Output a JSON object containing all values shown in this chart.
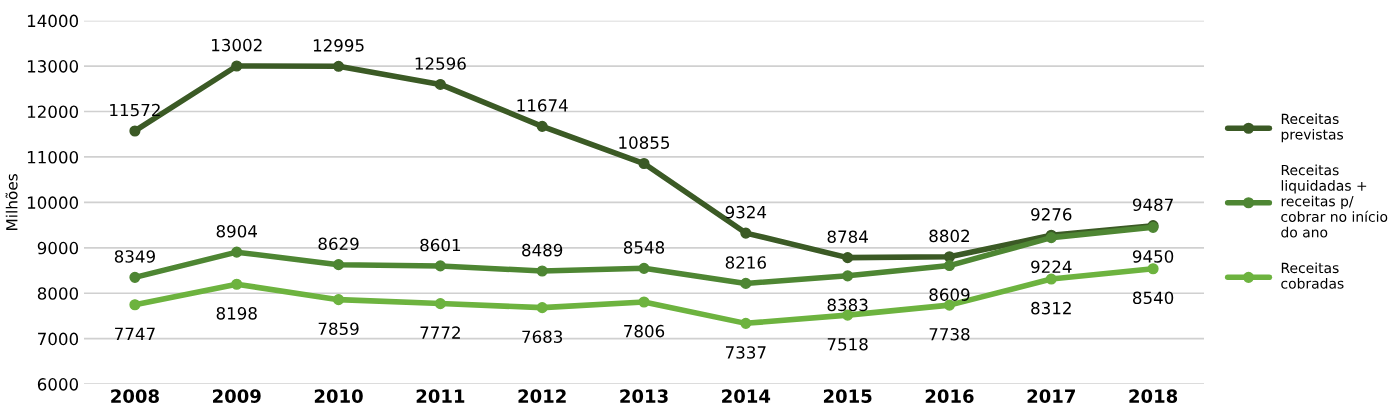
{
  "chart_data": {
    "type": "line",
    "ylabel": "Milhões",
    "categories": [
      "2008",
      "2009",
      "2010",
      "2011",
      "2012",
      "2013",
      "2014",
      "2015",
      "2016",
      "2017",
      "2018"
    ],
    "series": [
      {
        "name": "Receitas previstas",
        "color": "#3b5a25",
        "values": [
          11572,
          13002,
          12995,
          12596,
          11674,
          10855,
          9324,
          8784,
          8802,
          9276,
          9487
        ]
      },
      {
        "name": "Receitas liquidadas + receitas p/ cobrar no início do ano",
        "color": "#4e8633",
        "values": [
          8349,
          8904,
          8629,
          8601,
          8489,
          8548,
          8216,
          8383,
          8609,
          9224,
          9450
        ]
      },
      {
        "name": "Receitas cobradas",
        "color": "#6db33f",
        "values": [
          7747,
          8198,
          7859,
          7772,
          7683,
          7806,
          7337,
          7518,
          7738,
          8312,
          8540
        ]
      }
    ],
    "ylim": [
      6000,
      14000
    ],
    "yticks": [
      6000,
      7000,
      8000,
      9000,
      10000,
      11000,
      12000,
      13000,
      14000
    ],
    "grid": "y",
    "legend": "right",
    "marker": "circle",
    "line_style": "solid",
    "data_labels": true
  }
}
